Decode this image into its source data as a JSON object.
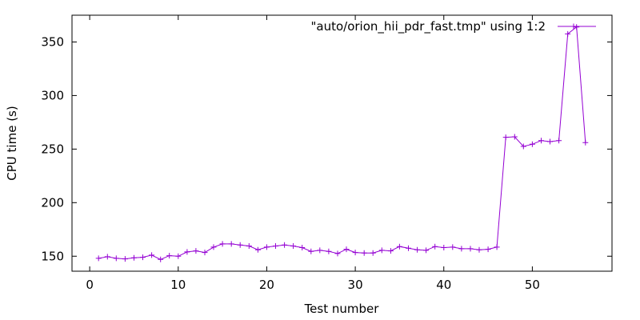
{
  "chart_data": {
    "type": "line",
    "xlabel": "Test number",
    "ylabel": "CPU time (s)",
    "xlim": [
      -2,
      59
    ],
    "ylim": [
      136,
      375
    ],
    "x_ticks": [
      0,
      10,
      20,
      30,
      40,
      50
    ],
    "y_ticks": [
      150,
      200,
      250,
      300,
      350
    ],
    "grid": false,
    "legend_position": "top-right",
    "series": [
      {
        "name": "\"auto/orion_hii_pdr_fast.tmp\" using 1:2",
        "color": "#9400d3",
        "x": [
          1,
          2,
          3,
          4,
          5,
          6,
          7,
          8,
          9,
          10,
          11,
          12,
          13,
          14,
          15,
          16,
          17,
          18,
          19,
          20,
          21,
          22,
          23,
          24,
          25,
          26,
          27,
          28,
          29,
          30,
          31,
          32,
          33,
          34,
          35,
          36,
          37,
          38,
          39,
          40,
          41,
          42,
          43,
          44,
          45,
          46,
          47,
          48,
          49,
          50,
          51,
          52,
          53,
          54,
          55,
          56
        ],
        "y": [
          148,
          149.5,
          148,
          147.5,
          148.5,
          149,
          151,
          147,
          150.5,
          150,
          154,
          155,
          153.5,
          158.5,
          161.5,
          161.5,
          160.5,
          159.5,
          156,
          158.5,
          159.5,
          160.5,
          159.5,
          158,
          154.5,
          155.5,
          154.5,
          152.5,
          156.5,
          153.5,
          153,
          153,
          155.5,
          155,
          159,
          157.5,
          156,
          155.5,
          159,
          158,
          158.5,
          157,
          157,
          156,
          156.5,
          158.5,
          261,
          261.5,
          252.5,
          254.5,
          258,
          257,
          258,
          357.5,
          364,
          256
        ]
      }
    ]
  }
}
